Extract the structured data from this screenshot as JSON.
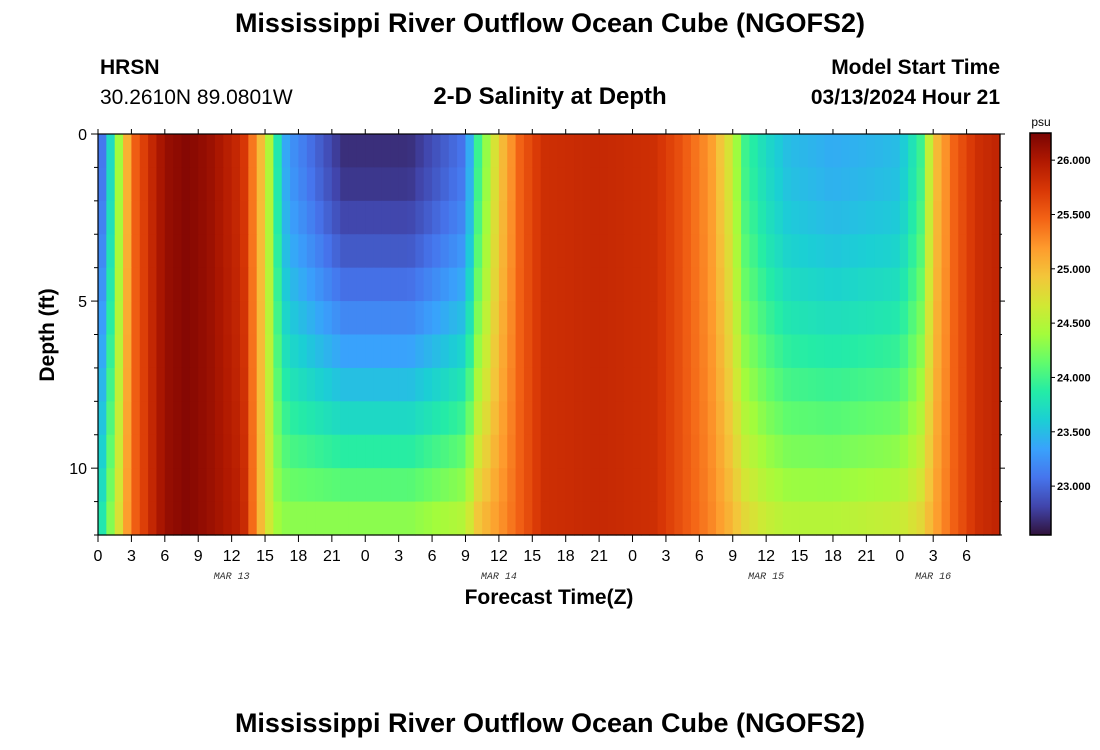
{
  "header": {
    "title": "Mississippi River Outflow Ocean Cube (NGOFS2)",
    "station": "HRSN",
    "coordinates": "30.2610N  89.0801W",
    "subtitle": "2-D Salinity at Depth",
    "model_start_label": "Model Start Time",
    "model_start_value": "03/13/2024 Hour 21"
  },
  "footer": {
    "title": "Mississippi River Outflow Ocean Cube (NGOFS2)"
  },
  "chart_data": {
    "type": "heatmap",
    "title": "2-D Salinity at Depth",
    "xlabel": "Forecast Time(Z)",
    "ylabel": "Depth (ft)",
    "x_tick_labels": [
      "0",
      "3",
      "6",
      "9",
      "12",
      "15",
      "18",
      "21",
      "0",
      "3",
      "6",
      "9",
      "12",
      "15",
      "18",
      "21",
      "0",
      "3",
      "6",
      "9",
      "12",
      "15",
      "18",
      "21",
      "0",
      "3",
      "6"
    ],
    "x_range_hours": [
      0,
      81
    ],
    "date_labels": [
      {
        "label": "MAR 13",
        "hour": 12
      },
      {
        "label": "MAR 14",
        "hour": 36
      },
      {
        "label": "MAR 15",
        "hour": 60
      },
      {
        "label": "MAR 16",
        "hour": 75
      }
    ],
    "y_tick_labels": [
      "0",
      "5",
      "10"
    ],
    "y_range_ft": [
      0,
      12
    ],
    "colorbar": {
      "unit": "psu",
      "min": 22.55,
      "max": 26.25,
      "tick_labels": [
        "23.000",
        "23.500",
        "24.000",
        "24.500",
        "25.000",
        "25.500",
        "26.000"
      ],
      "colors": [
        "#30123b",
        "#4145ab",
        "#4675ed",
        "#39a2fc",
        "#1bcfd4",
        "#24eca6",
        "#61fc6c",
        "#a4fc3b",
        "#d1e834",
        "#f3c63a",
        "#fe9b2d",
        "#f36315",
        "#d93806",
        "#b11901",
        "#7a0403"
      ]
    },
    "depth_levels_ft": [
      0.5,
      1.5,
      2.5,
      3.5,
      4.5,
      5.5,
      6.5,
      7.5,
      8.5,
      9.5,
      10.5,
      11.5
    ],
    "time_anchors_hours": [
      0,
      1,
      3,
      5,
      6,
      8,
      10,
      13,
      15,
      16,
      17,
      22,
      28,
      33,
      34,
      36,
      38,
      40,
      45,
      50,
      52,
      55,
      57,
      58,
      60,
      62,
      66,
      72,
      74,
      75,
      77,
      79,
      81
    ],
    "surface_salinity_psu": [
      22.8,
      23.6,
      25.4,
      25.9,
      26.1,
      26.2,
      26.1,
      25.8,
      24.8,
      23.9,
      23.3,
      22.7,
      22.7,
      23.1,
      23.9,
      24.9,
      25.5,
      25.8,
      25.85,
      25.8,
      25.6,
      25.2,
      24.6,
      24.0,
      23.7,
      23.5,
      23.4,
      23.5,
      24.0,
      24.9,
      25.5,
      25.8,
      25.9
    ],
    "bottom_salinity_psu": [
      23.6,
      24.2,
      25.4,
      25.9,
      26.1,
      26.2,
      26.1,
      25.9,
      24.8,
      24.4,
      24.3,
      24.3,
      24.3,
      24.5,
      24.9,
      25.2,
      25.5,
      25.8,
      25.85,
      25.8,
      25.6,
      25.3,
      25.0,
      24.8,
      24.6,
      24.5,
      24.5,
      24.6,
      24.8,
      25.1,
      25.5,
      25.8,
      25.9
    ]
  }
}
